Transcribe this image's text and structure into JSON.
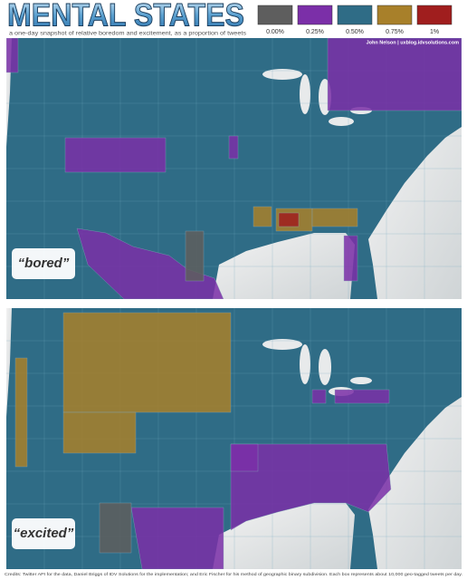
{
  "header": {
    "title": "MENTAL STATES",
    "subtitle": "a one-day snapshot of relative boredom and excitement, as a proportion of tweets"
  },
  "legend": [
    {
      "label": "0.00%",
      "color": "#5e5e5e"
    },
    {
      "label": "0.25%",
      "color": "#7b2fa8"
    },
    {
      "label": "0.50%",
      "color": "#2f6c86"
    },
    {
      "label": "0.75%",
      "color": "#a8802a"
    },
    {
      "label": "1%",
      "color": "#a01e1e"
    }
  ],
  "author": "John Nelson | uxblog.idvsolutions.com",
  "panels": [
    {
      "label": "“bored”"
    },
    {
      "label": "“excited”"
    }
  ],
  "credits": "Credits: Twitter API for the data, Daniel Briggs of IDV Solutions for the implementation; and Eric Fischer for his method of geographic binary subdivision.  Each box represents about 10,000 geo-tagged tweets per day."
}
